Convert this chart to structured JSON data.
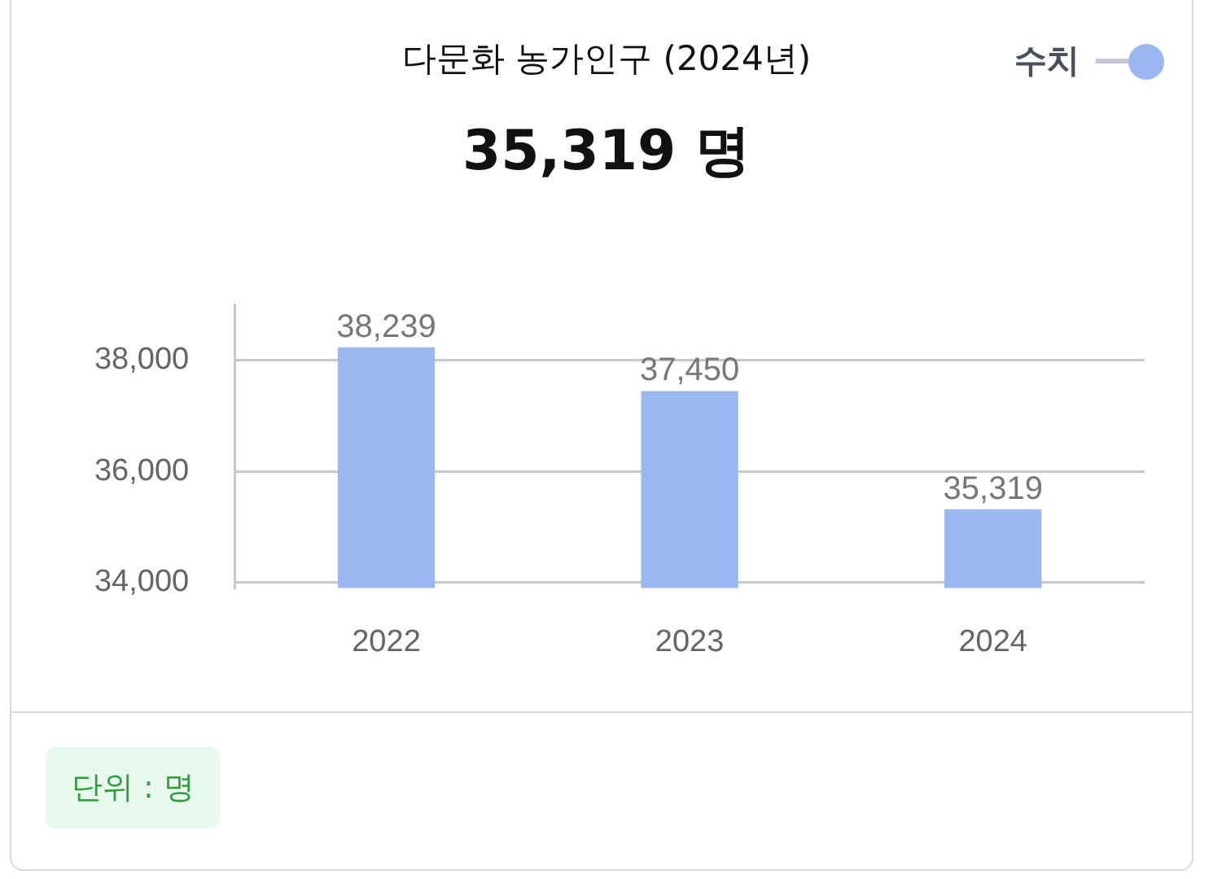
{
  "chart_data": {
    "type": "bar",
    "title": "다문화 농가인구 (2024년)",
    "subtitle": "35,319 명",
    "categories": [
      "2022",
      "2023",
      "2024"
    ],
    "series": [
      {
        "name": "수치",
        "color": "#9ab7ef",
        "values": [
          38239,
          37450,
          35319
        ],
        "value_labels": [
          "38,239",
          "37,450",
          "35,319"
        ]
      }
    ],
    "ylim": [
      33900,
      39000
    ],
    "yticks": [
      {
        "value": 34000,
        "label": "34,000"
      },
      {
        "value": 36000,
        "label": "36,000"
      },
      {
        "value": 38000,
        "label": "38,000"
      }
    ],
    "grid": "y",
    "legend": "top right",
    "annotations": [
      "단위 : 명"
    ]
  }
}
